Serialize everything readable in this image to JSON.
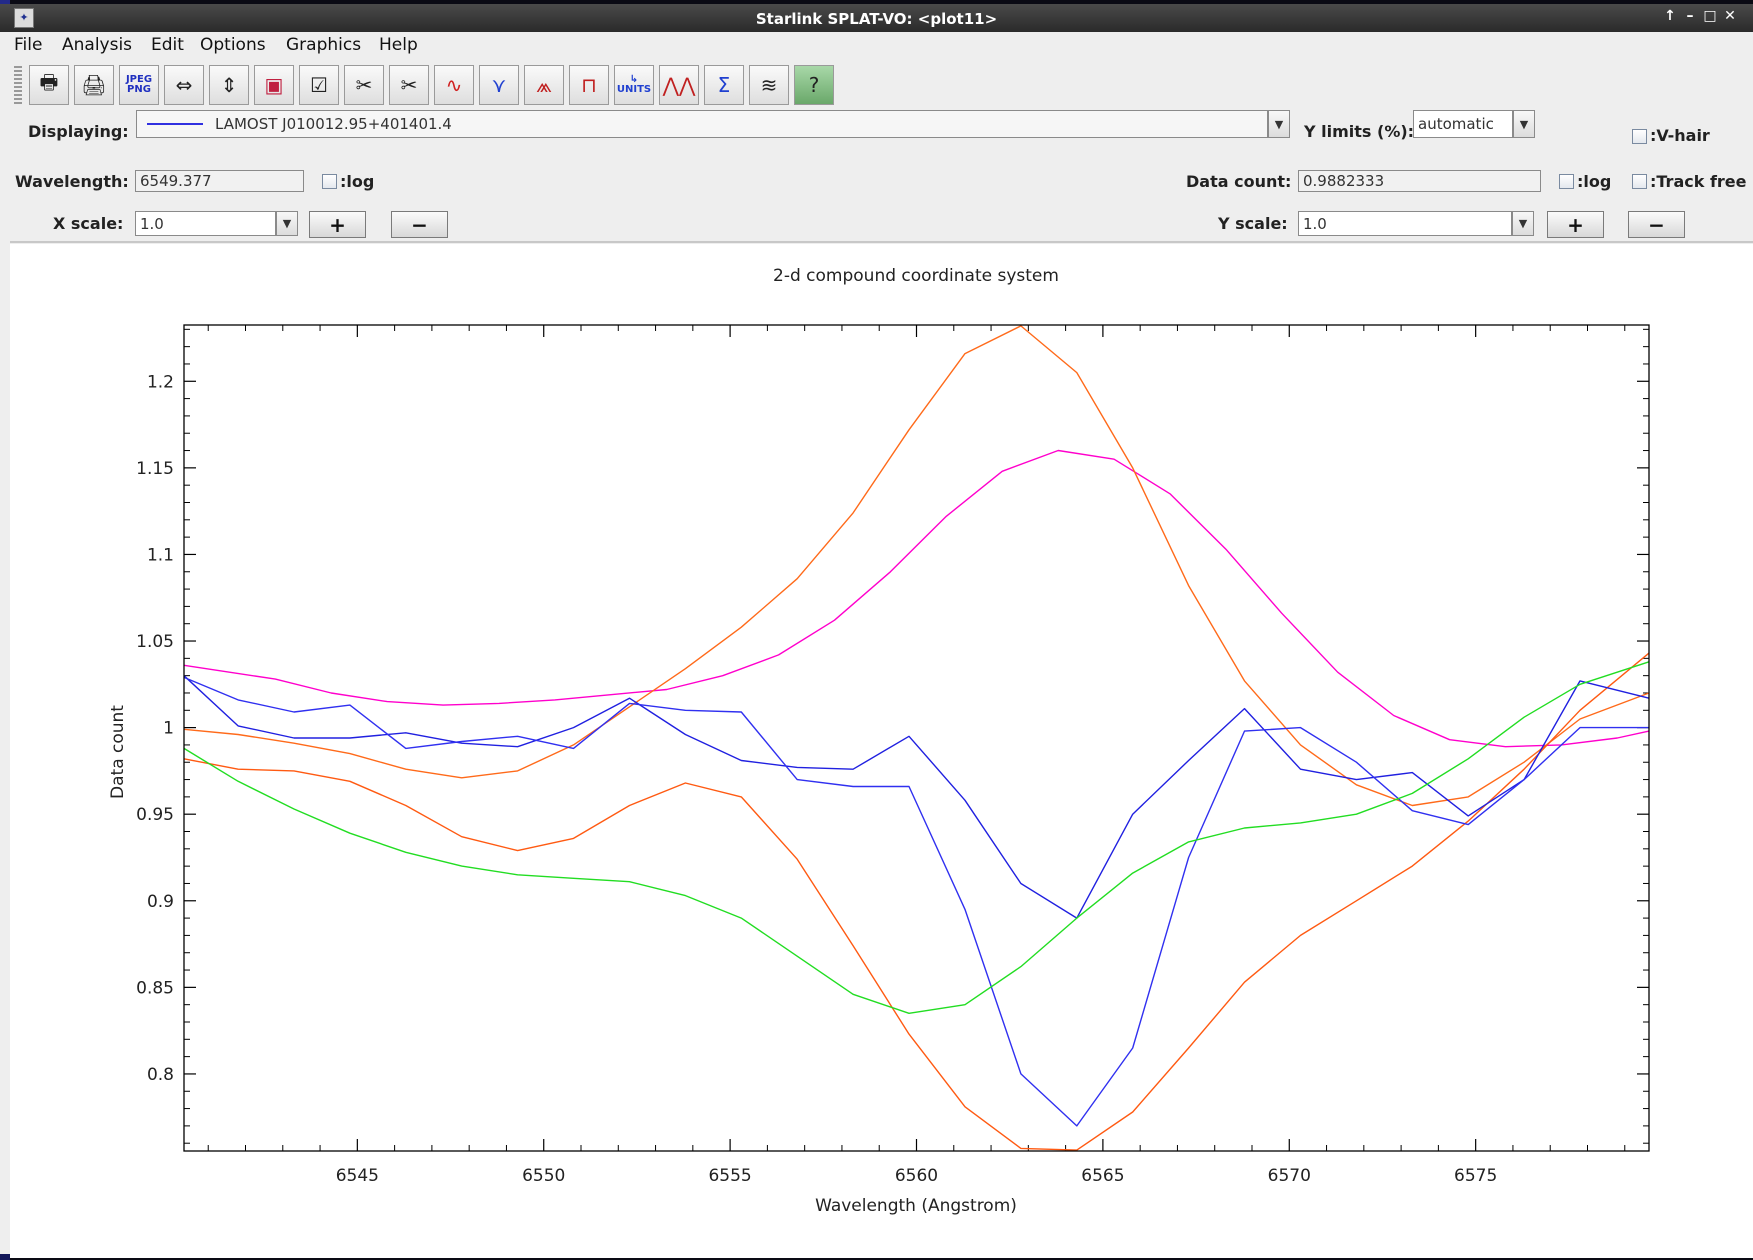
{
  "window": {
    "title": "Starlink SPLAT-VO: <plot11>",
    "controls": [
      "↑",
      "–",
      "□",
      "✕"
    ]
  },
  "menu": [
    {
      "label": "File"
    },
    {
      "label": "Analysis"
    },
    {
      "label": "Edit"
    },
    {
      "label": "Options"
    },
    {
      "label": "Graphics"
    },
    {
      "label": "Help"
    }
  ],
  "toolbar": {
    "buttons": [
      {
        "icon": "print-icon"
      },
      {
        "icon": "print-postscript-icon"
      },
      {
        "icon": "export-jpeg-png-icon",
        "text": "JPEG\nPNG"
      },
      {
        "icon": "fit-width-icon"
      },
      {
        "icon": "fit-height-icon"
      },
      {
        "icon": "zoom-region-icon"
      },
      {
        "icon": "select-list-icon"
      },
      {
        "icon": "cut-icon"
      },
      {
        "icon": "cut-region-icon"
      },
      {
        "icon": "smooth-icon"
      },
      {
        "icon": "stack-icon"
      },
      {
        "icon": "line-fit-icon"
      },
      {
        "icon": "filter-icon"
      },
      {
        "icon": "units-icon",
        "text": "UNITS"
      },
      {
        "icon": "line-identify-icon"
      },
      {
        "icon": "statistics-icon"
      },
      {
        "icon": "multi-spectra-icon"
      },
      {
        "icon": "help-icon"
      }
    ]
  },
  "controls": {
    "displaying_label": "Displaying:",
    "displaying_value": "LAMOST J010012.95+401401.4",
    "ylimits_label": "Y limits (%):",
    "ylimits_value": "automatic",
    "vhair_label": ":V-hair",
    "wavelength_label": "Wavelength:",
    "wavelength_value": "6549.377",
    "log_label_x": ":log",
    "datacount_label": "Data count:",
    "datacount_value": "0.9882333",
    "log_label_y": ":log",
    "trackfree_label": ":Track free",
    "xscale_label": "X scale:",
    "xscale_value": "1.0",
    "yscale_label": "Y scale:",
    "yscale_value": "1.0",
    "plus_label": "+",
    "minus_label": "−"
  },
  "chart_data": {
    "type": "line",
    "title": "2-d compound coordinate system",
    "xlabel": "Wavelength (Angstrom)",
    "ylabel": "Data count",
    "xlim": [
      6540.35,
      6579.65
    ],
    "ylim": [
      0.7555,
      1.2325
    ],
    "xticks": [
      6545,
      6550,
      6555,
      6560,
      6565,
      6570,
      6575
    ],
    "yticks": [
      0.8,
      0.85,
      0.9,
      0.95,
      1,
      1.05,
      1.1,
      1.15,
      1.2
    ],
    "ytick_labels": [
      "0.8",
      "0.85",
      "0.9",
      "0.95",
      "1",
      "1.05",
      "1.1",
      "1.15",
      "1.2"
    ],
    "grid": false,
    "series": [
      {
        "color": "#ff00cc",
        "points": [
          [
            6540.35,
            1.036
          ],
          [
            6542.8,
            1.028
          ],
          [
            6544.3,
            1.02
          ],
          [
            6545.8,
            1.015
          ],
          [
            6547.3,
            1.013
          ],
          [
            6548.8,
            1.014
          ],
          [
            6550.3,
            1.016
          ],
          [
            6551.8,
            1.019
          ],
          [
            6553.3,
            1.022
          ],
          [
            6554.8,
            1.03
          ],
          [
            6556.3,
            1.042
          ],
          [
            6557.8,
            1.062
          ],
          [
            6559.3,
            1.09
          ],
          [
            6560.8,
            1.122
          ],
          [
            6562.3,
            1.148
          ],
          [
            6563.8,
            1.16
          ],
          [
            6565.3,
            1.155
          ],
          [
            6566.8,
            1.135
          ],
          [
            6568.3,
            1.103
          ],
          [
            6569.8,
            1.066
          ],
          [
            6571.3,
            1.032
          ],
          [
            6572.8,
            1.007
          ],
          [
            6574.3,
            0.993
          ],
          [
            6575.8,
            0.989
          ],
          [
            6577.3,
            0.99
          ],
          [
            6578.8,
            0.994
          ],
          [
            6579.65,
            0.998
          ]
        ]
      },
      {
        "color": "#ff6a1a",
        "points": [
          [
            6540.35,
            0.999
          ],
          [
            6541.8,
            0.996
          ],
          [
            6543.3,
            0.991
          ],
          [
            6544.8,
            0.985
          ],
          [
            6546.3,
            0.976
          ],
          [
            6547.8,
            0.971
          ],
          [
            6549.3,
            0.975
          ],
          [
            6550.8,
            0.99
          ],
          [
            6552.3,
            1.012
          ],
          [
            6553.8,
            1.034
          ],
          [
            6555.3,
            1.058
          ],
          [
            6556.8,
            1.086
          ],
          [
            6558.3,
            1.124
          ],
          [
            6559.8,
            1.172
          ],
          [
            6561.3,
            1.216
          ],
          [
            6562.8,
            1.232
          ],
          [
            6564.3,
            1.205
          ],
          [
            6565.8,
            1.15
          ],
          [
            6567.3,
            1.082
          ],
          [
            6568.8,
            1.027
          ],
          [
            6570.3,
            0.99
          ],
          [
            6571.8,
            0.967
          ],
          [
            6573.3,
            0.955
          ],
          [
            6574.8,
            0.96
          ],
          [
            6576.3,
            0.98
          ],
          [
            6577.8,
            1.005
          ],
          [
            6579.65,
            1.02
          ]
        ]
      },
      {
        "color": "#ff5a12",
        "points": [
          [
            6540.35,
            0.982
          ],
          [
            6541.8,
            0.976
          ],
          [
            6543.3,
            0.975
          ],
          [
            6544.8,
            0.969
          ],
          [
            6546.3,
            0.955
          ],
          [
            6547.8,
            0.937
          ],
          [
            6549.3,
            0.929
          ],
          [
            6550.8,
            0.936
          ],
          [
            6552.3,
            0.955
          ],
          [
            6553.8,
            0.968
          ],
          [
            6555.3,
            0.96
          ],
          [
            6556.8,
            0.924
          ],
          [
            6558.3,
            0.874
          ],
          [
            6559.8,
            0.823
          ],
          [
            6561.3,
            0.781
          ],
          [
            6562.8,
            0.757
          ],
          [
            6564.3,
            0.756
          ],
          [
            6565.8,
            0.778
          ],
          [
            6567.3,
            0.815
          ],
          [
            6568.8,
            0.853
          ],
          [
            6570.3,
            0.88
          ],
          [
            6571.8,
            0.9
          ],
          [
            6573.3,
            0.92
          ],
          [
            6574.8,
            0.946
          ],
          [
            6576.3,
            0.976
          ],
          [
            6577.8,
            1.01
          ],
          [
            6579.65,
            1.043
          ]
        ]
      },
      {
        "color": "#2020e0",
        "points": [
          [
            6540.35,
            1.03
          ],
          [
            6541.8,
            1.001
          ],
          [
            6543.3,
            0.994
          ],
          [
            6544.8,
            0.994
          ],
          [
            6546.3,
            0.997
          ],
          [
            6547.8,
            0.991
          ],
          [
            6549.3,
            0.989
          ],
          [
            6550.8,
            1.0
          ],
          [
            6552.3,
            1.017
          ],
          [
            6553.8,
            0.996
          ],
          [
            6555.3,
            0.981
          ],
          [
            6556.8,
            0.977
          ],
          [
            6558.3,
            0.976
          ],
          [
            6559.8,
            0.995
          ],
          [
            6561.3,
            0.958
          ],
          [
            6562.8,
            0.91
          ],
          [
            6564.3,
            0.89
          ],
          [
            6565.8,
            0.95
          ],
          [
            6567.3,
            0.981
          ],
          [
            6568.8,
            1.011
          ],
          [
            6570.3,
            0.976
          ],
          [
            6571.8,
            0.97
          ],
          [
            6573.3,
            0.974
          ],
          [
            6574.8,
            0.949
          ],
          [
            6576.3,
            0.97
          ],
          [
            6577.8,
            1.027
          ],
          [
            6579.65,
            1.017
          ]
        ]
      },
      {
        "color": "#3030f0",
        "points": [
          [
            6540.35,
            1.029
          ],
          [
            6541.8,
            1.016
          ],
          [
            6543.3,
            1.009
          ],
          [
            6544.8,
            1.013
          ],
          [
            6546.3,
            0.988
          ],
          [
            6547.8,
            0.992
          ],
          [
            6549.3,
            0.995
          ],
          [
            6550.8,
            0.988
          ],
          [
            6552.3,
            1.014
          ],
          [
            6553.8,
            1.01
          ],
          [
            6555.3,
            1.009
          ],
          [
            6556.8,
            0.97
          ],
          [
            6558.3,
            0.966
          ],
          [
            6559.8,
            0.966
          ],
          [
            6561.3,
            0.895
          ],
          [
            6562.8,
            0.8
          ],
          [
            6564.3,
            0.77
          ],
          [
            6565.8,
            0.815
          ],
          [
            6567.3,
            0.925
          ],
          [
            6568.8,
            0.998
          ],
          [
            6570.3,
            1.0
          ],
          [
            6571.8,
            0.98
          ],
          [
            6573.3,
            0.952
          ],
          [
            6574.8,
            0.944
          ],
          [
            6576.3,
            0.97
          ],
          [
            6577.8,
            1.0
          ],
          [
            6579.65,
            1.0
          ]
        ]
      },
      {
        "color": "#22dd22",
        "points": [
          [
            6540.35,
            0.988
          ],
          [
            6541.8,
            0.969
          ],
          [
            6543.3,
            0.953
          ],
          [
            6544.8,
            0.939
          ],
          [
            6546.3,
            0.928
          ],
          [
            6547.8,
            0.92
          ],
          [
            6549.3,
            0.915
          ],
          [
            6550.8,
            0.913
          ],
          [
            6552.3,
            0.911
          ],
          [
            6553.8,
            0.903
          ],
          [
            6555.3,
            0.89
          ],
          [
            6556.8,
            0.868
          ],
          [
            6558.3,
            0.846
          ],
          [
            6559.8,
            0.835
          ],
          [
            6561.3,
            0.84
          ],
          [
            6562.8,
            0.862
          ],
          [
            6564.3,
            0.89
          ],
          [
            6565.8,
            0.916
          ],
          [
            6567.3,
            0.934
          ],
          [
            6568.8,
            0.942
          ],
          [
            6570.3,
            0.945
          ],
          [
            6571.8,
            0.95
          ],
          [
            6573.3,
            0.962
          ],
          [
            6574.8,
            0.982
          ],
          [
            6576.3,
            1.006
          ],
          [
            6577.8,
            1.025
          ],
          [
            6579.65,
            1.038
          ]
        ]
      }
    ]
  }
}
